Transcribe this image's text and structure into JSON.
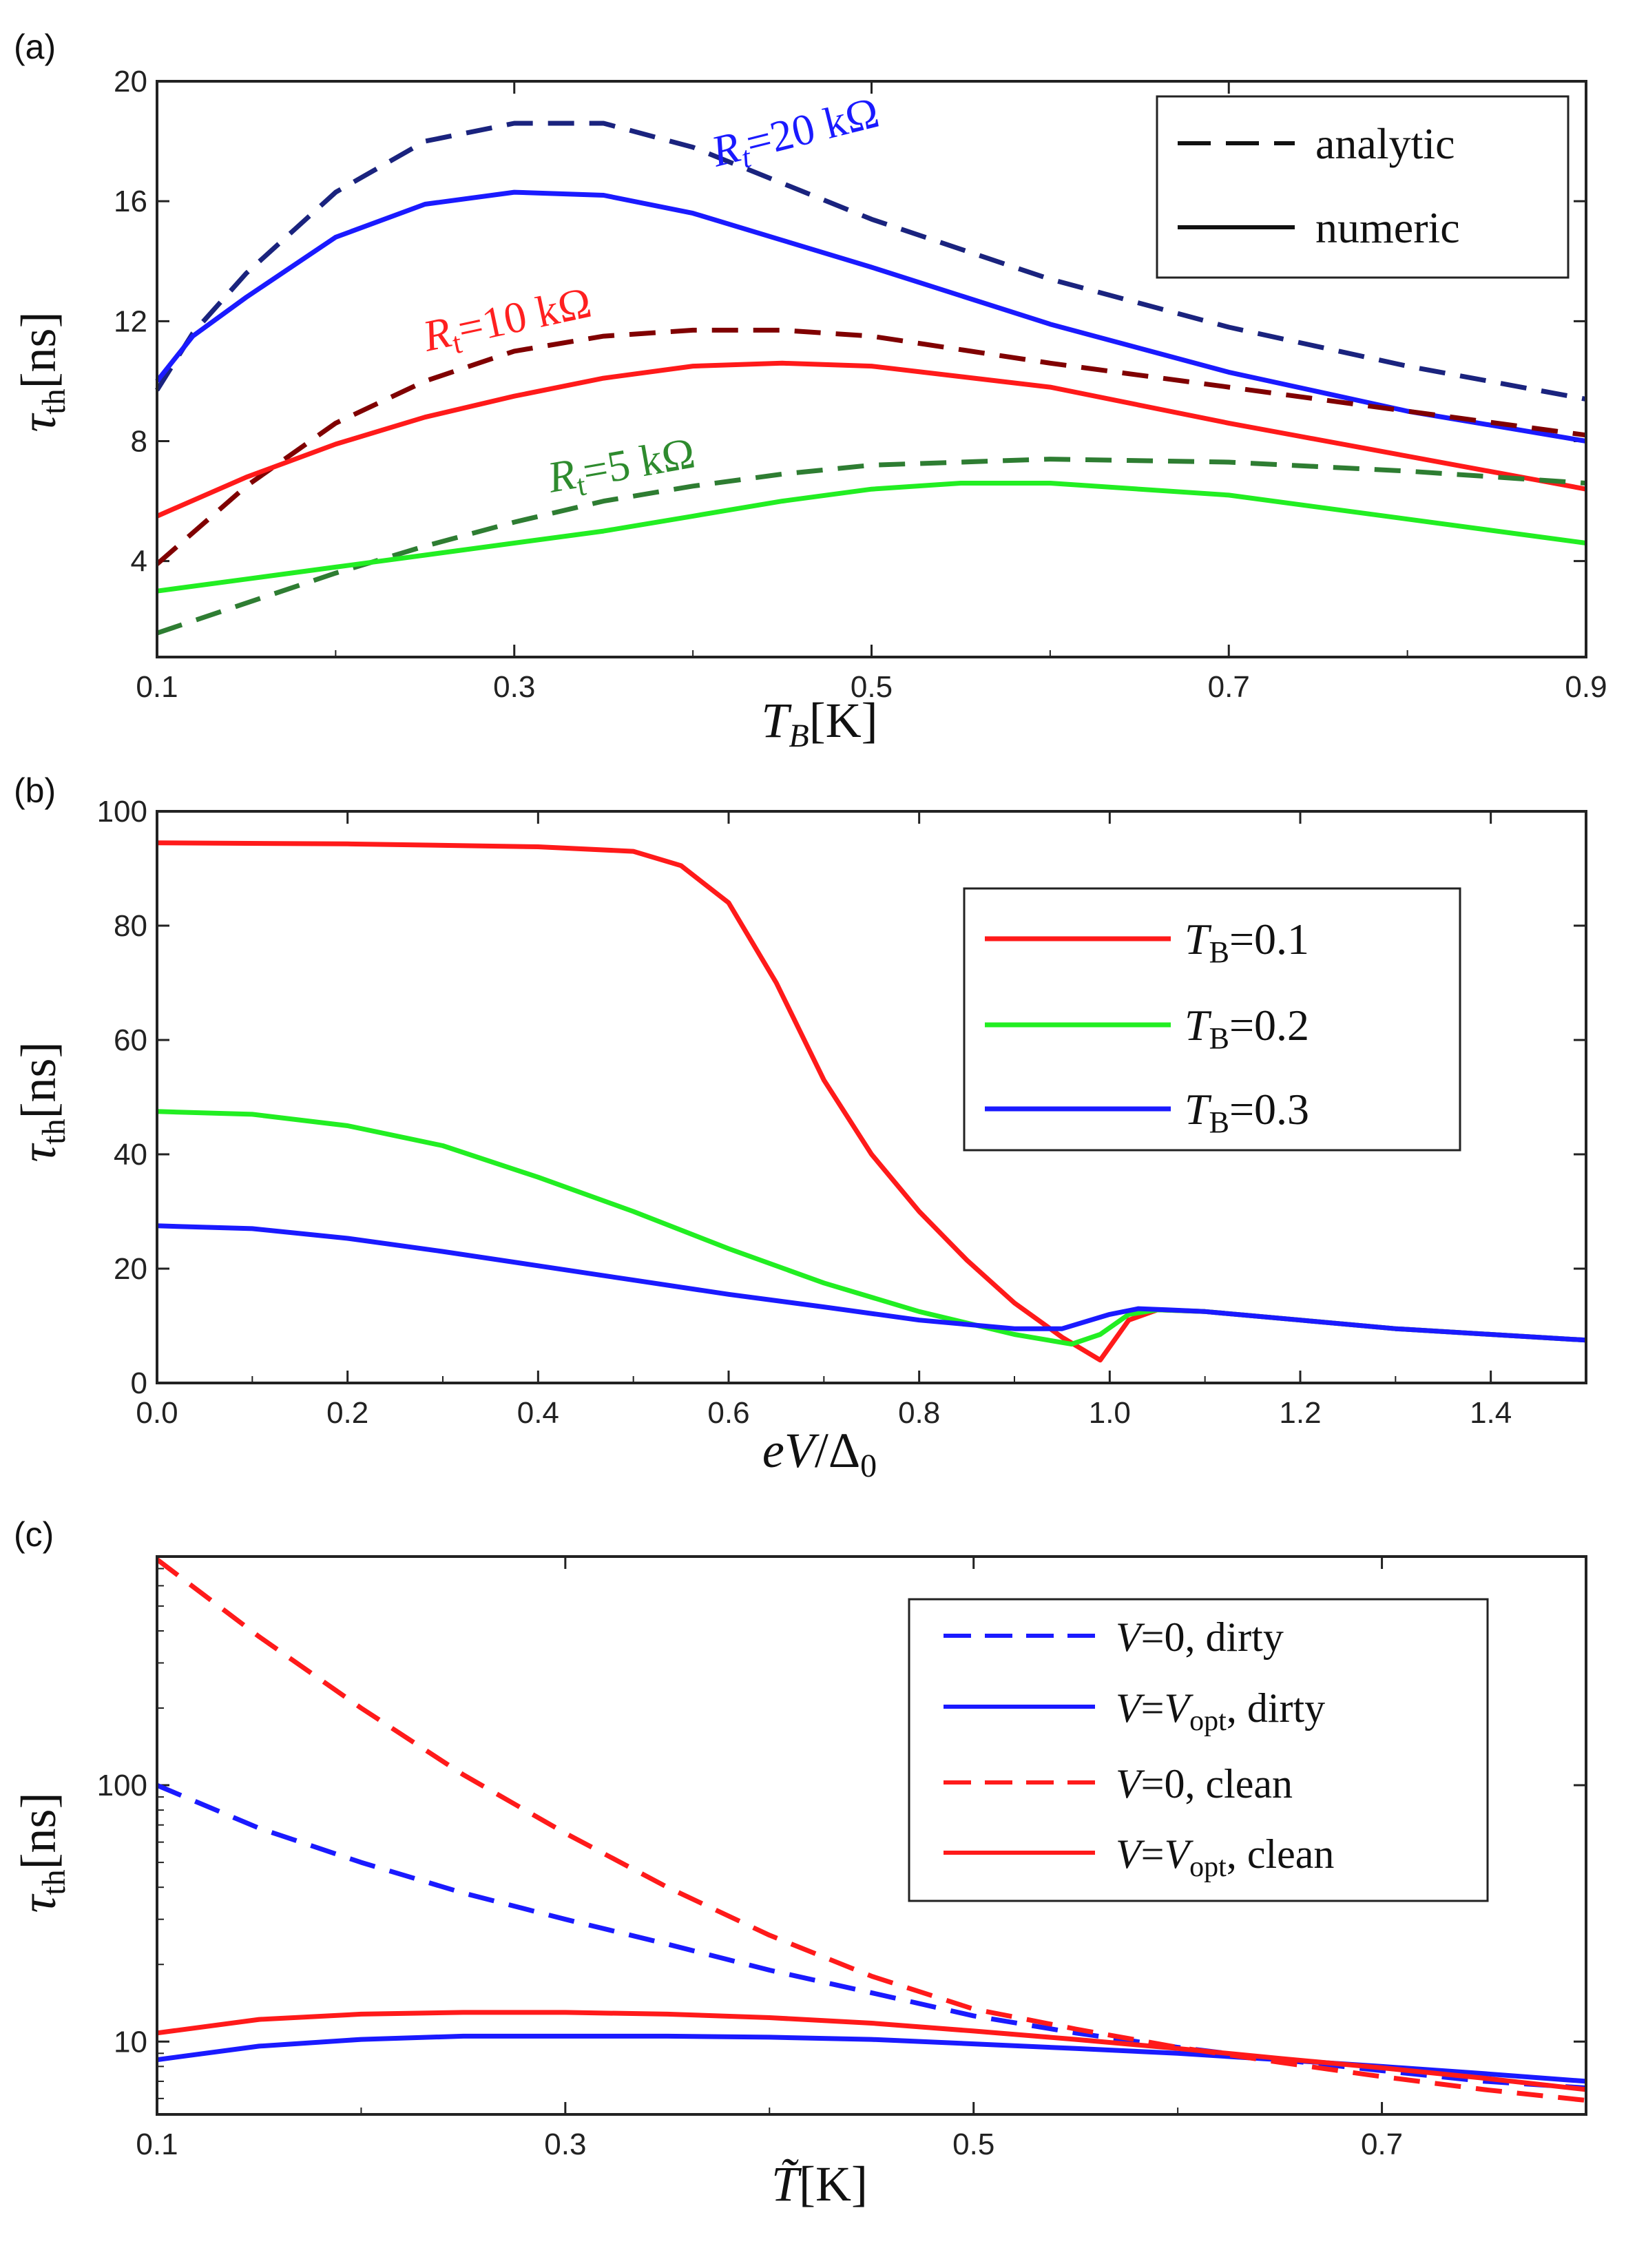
{
  "figure": {
    "panel_labels": [
      "(a)",
      "(b)",
      "(c)"
    ]
  },
  "chart_data": [
    {
      "panel": "(a)",
      "type": "line",
      "xlabel": "T_B[K]",
      "ylabel": "τ_th[ns]",
      "xlim": [
        0.1,
        0.9
      ],
      "ylim": [
        0.8,
        20
      ],
      "xticks": [
        0.1,
        0.3,
        0.5,
        0.7,
        0.9
      ],
      "yticks": [
        4,
        8,
        12,
        16,
        20
      ],
      "xtick_labels": [
        "0.1",
        "0.3",
        "0.5",
        "0.7",
        "0.9"
      ],
      "ytick_labels": [
        "4",
        "8",
        "12",
        "16",
        "20"
      ],
      "legend": {
        "position": "top-right",
        "entries": [
          {
            "label": "analytic",
            "style": "dashed",
            "color": "#111111"
          },
          {
            "label": "numeric",
            "style": "solid",
            "color": "#111111"
          }
        ]
      },
      "annotations": [
        {
          "text": "R_t=20 kΩ",
          "color": "#1a1aff"
        },
        {
          "text": "R_t=10 kΩ",
          "color": "#ff2020"
        },
        {
          "text": "R_t=5 kΩ",
          "color": "#2e8b2e"
        }
      ],
      "series": [
        {
          "name": "R_t=20 kΩ analytic",
          "color": "#1a237e",
          "style": "dashed",
          "x": [
            0.1,
            0.12,
            0.15,
            0.2,
            0.25,
            0.3,
            0.35,
            0.4,
            0.45,
            0.5,
            0.6,
            0.7,
            0.8,
            0.9
          ],
          "y": [
            9.7,
            11.6,
            13.6,
            16.3,
            18.0,
            18.6,
            18.6,
            17.8,
            16.6,
            15.4,
            13.4,
            11.8,
            10.5,
            9.4
          ]
        },
        {
          "name": "R_t=20 kΩ numeric",
          "color": "#1a1aff",
          "style": "solid",
          "x": [
            0.1,
            0.12,
            0.15,
            0.2,
            0.25,
            0.3,
            0.35,
            0.4,
            0.45,
            0.5,
            0.6,
            0.7,
            0.8,
            0.9
          ],
          "y": [
            10.0,
            11.5,
            12.8,
            14.8,
            15.9,
            16.3,
            16.2,
            15.6,
            14.7,
            13.8,
            11.9,
            10.3,
            9.0,
            8.0
          ]
        },
        {
          "name": "R_t=10 kΩ analytic",
          "color": "#800000",
          "style": "dashed",
          "x": [
            0.1,
            0.15,
            0.2,
            0.25,
            0.3,
            0.35,
            0.4,
            0.45,
            0.5,
            0.6,
            0.7,
            0.8,
            0.9
          ],
          "y": [
            3.9,
            6.5,
            8.6,
            10.0,
            11.0,
            11.5,
            11.7,
            11.7,
            11.5,
            10.6,
            9.8,
            9.0,
            8.2
          ]
        },
        {
          "name": "R_t=10 kΩ numeric",
          "color": "#ff1a1a",
          "style": "solid",
          "x": [
            0.1,
            0.15,
            0.2,
            0.25,
            0.3,
            0.35,
            0.4,
            0.45,
            0.5,
            0.6,
            0.7,
            0.8,
            0.9
          ],
          "y": [
            5.5,
            6.8,
            7.9,
            8.8,
            9.5,
            10.1,
            10.5,
            10.6,
            10.5,
            9.8,
            8.6,
            7.5,
            6.4
          ]
        },
        {
          "name": "R_t=5 kΩ analytic",
          "color": "#2e7d32",
          "style": "dashed",
          "x": [
            0.1,
            0.15,
            0.2,
            0.25,
            0.3,
            0.35,
            0.4,
            0.45,
            0.5,
            0.55,
            0.6,
            0.7,
            0.8,
            0.9
          ],
          "y": [
            1.6,
            2.6,
            3.6,
            4.5,
            5.3,
            6.0,
            6.5,
            6.9,
            7.2,
            7.3,
            7.4,
            7.3,
            7.0,
            6.6
          ]
        },
        {
          "name": "R_t=5 kΩ numeric",
          "color": "#22ee22",
          "style": "solid",
          "x": [
            0.1,
            0.15,
            0.2,
            0.25,
            0.3,
            0.35,
            0.4,
            0.45,
            0.5,
            0.55,
            0.6,
            0.7,
            0.8,
            0.9
          ],
          "y": [
            3.0,
            3.4,
            3.8,
            4.2,
            4.6,
            5.0,
            5.5,
            6.0,
            6.4,
            6.6,
            6.6,
            6.2,
            5.4,
            4.6
          ]
        }
      ]
    },
    {
      "panel": "(b)",
      "type": "line",
      "xlabel": "eV/Δ_0",
      "ylabel": "τ_th[ns]",
      "xlim": [
        0.0,
        1.5
      ],
      "ylim": [
        0,
        100
      ],
      "xticks": [
        0.0,
        0.2,
        0.4,
        0.6,
        0.8,
        1.0,
        1.2,
        1.4
      ],
      "yticks": [
        0,
        20,
        40,
        60,
        80,
        100
      ],
      "xtick_labels": [
        "0.0",
        "0.2",
        "0.4",
        "0.6",
        "0.8",
        "1.0",
        "1.2",
        "1.4"
      ],
      "ytick_labels": [
        "0",
        "20",
        "40",
        "60",
        "80",
        "100"
      ],
      "legend": {
        "position": "top-right",
        "entries": [
          {
            "label": "T_B=0.1",
            "style": "solid",
            "color": "#ff1a1a"
          },
          {
            "label": "T_B=0.2",
            "style": "solid",
            "color": "#22ee22"
          },
          {
            "label": "T_B=0.3",
            "style": "solid",
            "color": "#1a1aff"
          }
        ]
      },
      "series": [
        {
          "name": "T_B=0.1",
          "color": "#ff1a1a",
          "style": "solid",
          "x": [
            0.0,
            0.2,
            0.4,
            0.5,
            0.55,
            0.6,
            0.65,
            0.7,
            0.75,
            0.8,
            0.85,
            0.9,
            0.95,
            0.99,
            1.02,
            1.05,
            1.1,
            1.2,
            1.3,
            1.4,
            1.5
          ],
          "y": [
            94.5,
            94.3,
            93.8,
            93.0,
            90.5,
            84.0,
            70.0,
            53.0,
            40.0,
            30.0,
            21.5,
            14.0,
            8.0,
            4.0,
            11.0,
            12.8,
            12.5,
            11.0,
            9.5,
            8.5,
            7.5
          ]
        },
        {
          "name": "T_B=0.2",
          "color": "#22ee22",
          "style": "solid",
          "x": [
            0.0,
            0.1,
            0.2,
            0.3,
            0.4,
            0.5,
            0.6,
            0.7,
            0.8,
            0.9,
            0.96,
            0.99,
            1.02,
            1.05,
            1.1,
            1.2,
            1.3,
            1.4,
            1.5
          ],
          "y": [
            47.5,
            47.0,
            45.0,
            41.5,
            36.0,
            30.0,
            23.5,
            17.5,
            12.5,
            8.5,
            6.8,
            8.5,
            12.0,
            12.8,
            12.5,
            11.0,
            9.5,
            8.5,
            7.5
          ]
        },
        {
          "name": "T_B=0.3",
          "color": "#1a1aff",
          "style": "solid",
          "x": [
            0.0,
            0.1,
            0.2,
            0.3,
            0.4,
            0.5,
            0.6,
            0.7,
            0.8,
            0.9,
            0.95,
            1.0,
            1.03,
            1.06,
            1.1,
            1.2,
            1.3,
            1.4,
            1.5
          ],
          "y": [
            27.5,
            27.0,
            25.3,
            23.0,
            20.5,
            18.0,
            15.5,
            13.3,
            11.0,
            9.5,
            9.5,
            12.0,
            13.0,
            12.8,
            12.5,
            11.0,
            9.5,
            8.5,
            7.5
          ]
        }
      ]
    },
    {
      "panel": "(c)",
      "type": "line",
      "xlabel": "T̃[K]",
      "ylabel": "τ_th[ns]",
      "yscale": "log",
      "xlim": [
        0.1,
        0.8
      ],
      "ylim": [
        5.2,
        780
      ],
      "xticks": [
        0.1,
        0.3,
        0.5,
        0.7
      ],
      "yticks": [
        10,
        100
      ],
      "xtick_labels": [
        "0.1",
        "0.3",
        "0.5",
        "0.7"
      ],
      "ytick_labels": [
        "10",
        "100"
      ],
      "legend": {
        "position": "top-right",
        "entries": [
          {
            "label": "V=0, dirty",
            "style": "dashed",
            "color": "#1a1aff"
          },
          {
            "label": "V=V_opt, dirty",
            "style": "solid",
            "color": "#1a1aff"
          },
          {
            "label": "V=0, clean",
            "style": "dashed",
            "color": "#ff1a1a"
          },
          {
            "label": "V=V_opt, clean",
            "style": "solid",
            "color": "#ff1a1a"
          }
        ]
      },
      "series": [
        {
          "name": "V=0, dirty",
          "color": "#1a1aff",
          "style": "dashed",
          "x": [
            0.1,
            0.15,
            0.2,
            0.25,
            0.3,
            0.35,
            0.4,
            0.45,
            0.5,
            0.55,
            0.6,
            0.65,
            0.7,
            0.75,
            0.8
          ],
          "y": [
            100,
            68,
            50,
            38,
            30,
            24,
            19,
            15.5,
            12.6,
            10.8,
            9.5,
            8.5,
            7.7,
            7.0,
            6.6
          ]
        },
        {
          "name": "V=V_opt, dirty",
          "color": "#1a1aff",
          "style": "solid",
          "x": [
            0.1,
            0.15,
            0.2,
            0.25,
            0.3,
            0.35,
            0.4,
            0.45,
            0.5,
            0.55,
            0.6,
            0.65,
            0.7,
            0.75,
            0.8
          ],
          "y": [
            8.5,
            9.6,
            10.2,
            10.5,
            10.5,
            10.5,
            10.4,
            10.2,
            9.8,
            9.4,
            9.0,
            8.5,
            8.0,
            7.5,
            7.0
          ]
        },
        {
          "name": "V=0, clean",
          "color": "#ff1a1a",
          "style": "dashed",
          "x": [
            0.1,
            0.15,
            0.2,
            0.25,
            0.3,
            0.35,
            0.4,
            0.45,
            0.5,
            0.55,
            0.6,
            0.65,
            0.7,
            0.75,
            0.8
          ],
          "y": [
            760,
            380,
            200,
            110,
            65,
            40,
            26,
            18,
            13.4,
            11.2,
            9.5,
            8.3,
            7.3,
            6.5,
            5.9
          ]
        },
        {
          "name": "V=V_opt, clean",
          "color": "#ff1a1a",
          "style": "solid",
          "x": [
            0.1,
            0.15,
            0.2,
            0.25,
            0.3,
            0.35,
            0.4,
            0.45,
            0.5,
            0.55,
            0.6,
            0.65,
            0.7,
            0.75,
            0.8
          ],
          "y": [
            10.8,
            12.2,
            12.8,
            13.0,
            13.0,
            12.8,
            12.4,
            11.8,
            11.0,
            10.2,
            9.4,
            8.6,
            7.9,
            7.2,
            6.5
          ]
        }
      ]
    }
  ]
}
